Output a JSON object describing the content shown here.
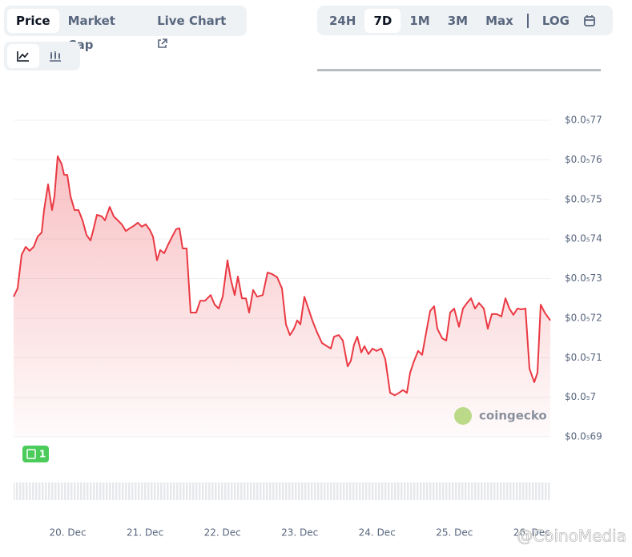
{
  "ui": {
    "tabs": [
      "Price",
      "Market Cap",
      "Live Chart"
    ],
    "ranges": [
      "24H",
      "7D",
      "1M",
      "3M",
      "Max"
    ],
    "log": "LOG",
    "badge": "1",
    "watermark": "coingecko",
    "credit": "@CoinoMedia"
  },
  "chart_data": {
    "type": "line",
    "color": "#ea3943",
    "grid": true,
    "xlim": [
      19.3,
      26.24
    ],
    "ylim": [
      6.9e-06,
      7.7e-06
    ],
    "xticks": [
      {
        "value": 20,
        "label": "20. Dec"
      },
      {
        "value": 21,
        "label": "21. Dec"
      },
      {
        "value": 22,
        "label": "22. Dec"
      },
      {
        "value": 23,
        "label": "23. Dec"
      },
      {
        "value": 24,
        "label": "24. Dec"
      },
      {
        "value": 25,
        "label": "25. Dec"
      },
      {
        "value": 26,
        "label": "26. Dec"
      }
    ],
    "yticks": [
      {
        "value": 7.7e-06,
        "label": "$0.0₅77"
      },
      {
        "value": 7.6e-06,
        "label": "$0.0₅76"
      },
      {
        "value": 7.5e-06,
        "label": "$0.0₅75"
      },
      {
        "value": 7.4e-06,
        "label": "$0.0₅74"
      },
      {
        "value": 7.3e-06,
        "label": "$0.0₅73"
      },
      {
        "value": 7.2e-06,
        "label": "$0.0₅72"
      },
      {
        "value": 7.1e-06,
        "label": "$0.0₅71"
      },
      {
        "value": 7e-06,
        "label": "$0.0₅7"
      },
      {
        "value": 6.9e-06,
        "label": "$0.0₅69"
      }
    ],
    "x": [
      19.3,
      19.352,
      19.404,
      19.456,
      19.507,
      19.559,
      19.611,
      19.663,
      19.694,
      19.745,
      19.797,
      19.828,
      19.87,
      19.921,
      19.953,
      19.994,
      20.035,
      20.087,
      20.139,
      20.191,
      20.243,
      20.294,
      20.336,
      20.377,
      20.439,
      20.481,
      20.543,
      20.595,
      20.647,
      20.698,
      20.75,
      20.802,
      20.854,
      20.906,
      20.957,
      21.009,
      21.061,
      21.102,
      21.154,
      21.196,
      21.247,
      21.299,
      21.351,
      21.403,
      21.444,
      21.486,
      21.537,
      21.589,
      21.662,
      21.713,
      21.776,
      21.848,
      21.9,
      21.952,
      22.003,
      22.066,
      22.107,
      22.159,
      22.2,
      22.252,
      22.304,
      22.345,
      22.397,
      22.449,
      22.521,
      22.584,
      22.646,
      22.708,
      22.77,
      22.822,
      22.874,
      22.925,
      22.967,
      23.008,
      23.06,
      23.112,
      23.163,
      23.226,
      23.288,
      23.35,
      23.402,
      23.443,
      23.505,
      23.557,
      23.619,
      23.661,
      23.702,
      23.744,
      23.795,
      23.837,
      23.889,
      23.94,
      23.992,
      24.054,
      24.106,
      24.168,
      24.23,
      24.283,
      24.334,
      24.386,
      24.427,
      24.479,
      24.531,
      24.583,
      24.634,
      24.686,
      24.738,
      24.78,
      24.842,
      24.894,
      24.945,
      24.997,
      25.059,
      25.111,
      25.163,
      25.215,
      25.266,
      25.318,
      25.38,
      25.432,
      25.484,
      25.546,
      25.608,
      25.66,
      25.712,
      25.763,
      25.815,
      25.867,
      25.919,
      25.971,
      26.033,
      26.074,
      26.116,
      26.168,
      26.24
    ],
    "values": [
      7.254e-06,
      7.275e-06,
      7.36e-06,
      7.38e-06,
      7.37e-06,
      7.38e-06,
      7.406e-06,
      7.416e-06,
      7.473e-06,
      7.538e-06,
      7.473e-06,
      7.508e-06,
      7.609e-06,
      7.589e-06,
      7.562e-06,
      7.562e-06,
      7.508e-06,
      7.473e-06,
      7.473e-06,
      7.447e-06,
      7.41e-06,
      7.396e-06,
      7.427e-06,
      7.461e-06,
      7.457e-06,
      7.447e-06,
      7.481e-06,
      7.457e-06,
      7.447e-06,
      7.437e-06,
      7.42e-06,
      7.427e-06,
      7.433e-06,
      7.441e-06,
      7.431e-06,
      7.437e-06,
      7.423e-06,
      7.406e-06,
      7.346e-06,
      7.372e-06,
      7.364e-06,
      7.386e-06,
      7.406e-06,
      7.425e-06,
      7.427e-06,
      7.376e-06,
      7.376e-06,
      7.214e-06,
      7.214e-06,
      7.244e-06,
      7.244e-06,
      7.258e-06,
      7.234e-06,
      7.224e-06,
      7.254e-06,
      7.346e-06,
      7.299e-06,
      7.258e-06,
      7.305e-06,
      7.25e-06,
      7.25e-06,
      7.214e-06,
      7.271e-06,
      7.254e-06,
      7.258e-06,
      7.315e-06,
      7.311e-06,
      7.303e-06,
      7.275e-06,
      7.184e-06,
      7.157e-06,
      7.173e-06,
      7.194e-06,
      7.184e-06,
      7.254e-06,
      7.224e-06,
      7.194e-06,
      7.163e-06,
      7.137e-06,
      7.129e-06,
      7.123e-06,
      7.153e-06,
      7.157e-06,
      7.143e-06,
      7.078e-06,
      7.092e-06,
      7.133e-06,
      7.153e-06,
      7.113e-06,
      7.129e-06,
      7.109e-06,
      7.123e-06,
      7.117e-06,
      7.123e-06,
      7.096e-06,
      7.011e-06,
      7.005e-06,
      7.011e-06,
      7.018e-06,
      7.011e-06,
      7.062e-06,
      7.092e-06,
      7.117e-06,
      7.107e-06,
      7.163e-06,
      7.218e-06,
      7.23e-06,
      7.173e-06,
      7.149e-06,
      7.143e-06,
      7.214e-06,
      7.224e-06,
      7.178e-06,
      7.224e-06,
      7.238e-06,
      7.25e-06,
      7.224e-06,
      7.238e-06,
      7.224e-06,
      7.173e-06,
      7.21e-06,
      7.21e-06,
      7.204e-06,
      7.25e-06,
      7.224e-06,
      7.208e-06,
      7.224e-06,
      7.222e-06,
      7.224e-06,
      7.072e-06,
      7.038e-06,
      7.062e-06,
      7.234e-06,
      7.214e-06,
      7.194e-06
    ]
  }
}
